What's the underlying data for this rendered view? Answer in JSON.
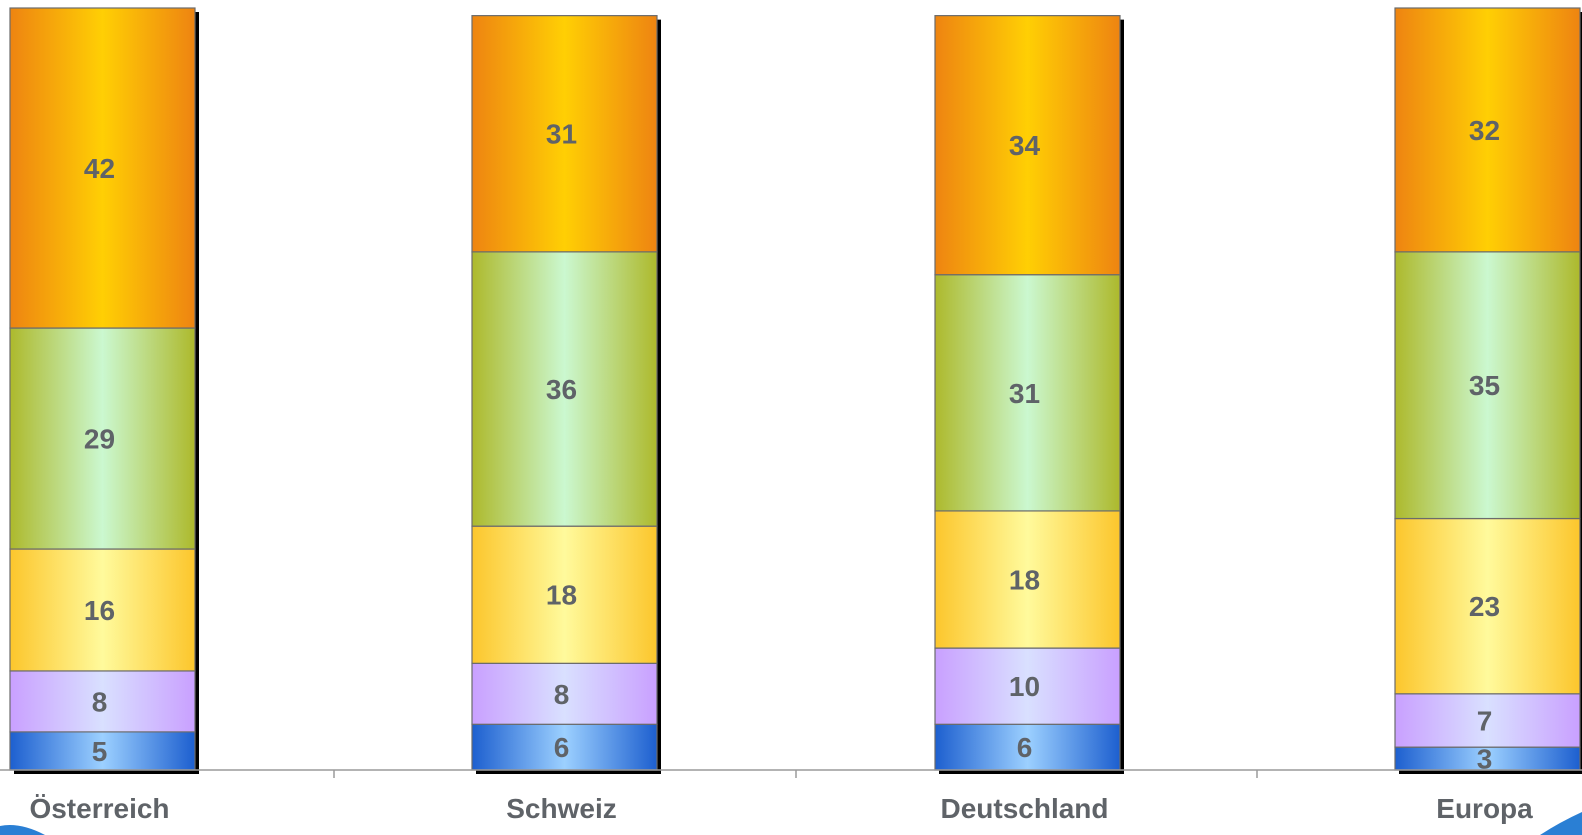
{
  "chart_data": {
    "type": "bar",
    "stacked": true,
    "categories": [
      "Österreich",
      "Schweiz",
      "Deutschland",
      "Europa"
    ],
    "series": [
      {
        "values": [
          5,
          6,
          6,
          3
        ],
        "color": "#2f73d8"
      },
      {
        "values": [
          8,
          8,
          10,
          7
        ],
        "color": "#c9a6ff"
      },
      {
        "values": [
          16,
          18,
          18,
          23
        ],
        "color": "#ffd23a"
      },
      {
        "values": [
          29,
          36,
          31,
          35
        ],
        "color": "#b3c23a"
      },
      {
        "values": [
          42,
          31,
          34,
          32
        ],
        "color": "#f08a12"
      }
    ],
    "ylim": [
      0,
      100
    ],
    "title": "",
    "xlabel": "",
    "ylabel": "",
    "legend": "none",
    "grid": false
  }
}
